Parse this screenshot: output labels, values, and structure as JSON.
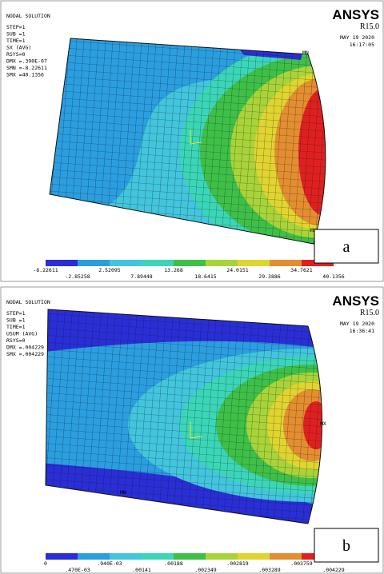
{
  "panels": [
    {
      "header": {
        "title": "NODAL SOLUTION",
        "info": [
          "STEP=1",
          "SUB =1",
          "TIME=1",
          "SX       (AVG)",
          "RSYS=0",
          "DMX =.390E-07",
          "SMN =-8.22611",
          "SMX =40.1356"
        ]
      },
      "brand": {
        "name": "ANSYS",
        "version": "R15.0",
        "date": "MAY 19 2020",
        "time": "16:17:05"
      },
      "node_labels": [
        "MN",
        "MX"
      ],
      "legend": {
        "top_labels": [
          "-8.22611",
          "2.52095",
          "13.268",
          "24.0151",
          "34.7621"
        ],
        "bottom_labels": [
          "-2.85258",
          "7.89448",
          "18.6415",
          "29.3886",
          "40.1356"
        ]
      },
      "label": "a"
    },
    {
      "header": {
        "title": "NODAL SOLUTION",
        "info": [
          "STEP=1",
          "SUB =1",
          "TIME=1",
          "USUM     (AVG)",
          "RSYS=0",
          "DMX =.004229",
          "SMX =.004229"
        ]
      },
      "brand": {
        "name": "ANSYS",
        "version": "R15.0",
        "date": "MAY 19 2020",
        "time": "16:36:41"
      },
      "node_labels": [
        "MN",
        "MX"
      ],
      "legend": {
        "top_labels": [
          "0",
          ".940E-03",
          ".00188",
          ".002819",
          ".003759"
        ],
        "bottom_labels": [
          ".470E-03",
          ".00141",
          ".002349",
          ".003289",
          ".004229"
        ]
      },
      "label": "b"
    }
  ]
}
